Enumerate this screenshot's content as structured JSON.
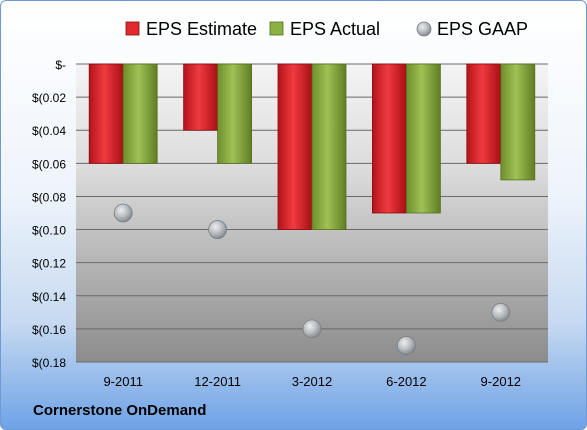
{
  "chart_data": {
    "type": "bar",
    "categories": [
      "9-2011",
      "12-2011",
      "3-2012",
      "6-2012",
      "9-2012"
    ],
    "series": [
      {
        "name": "EPS Estimate",
        "kind": "bar",
        "color": "#e0282d",
        "values": [
          -0.06,
          -0.04,
          -0.1,
          -0.09,
          -0.06
        ]
      },
      {
        "name": "EPS Actual",
        "kind": "bar",
        "color": "#8db044",
        "values": [
          -0.06,
          -0.06,
          -0.1,
          -0.09,
          -0.07
        ]
      },
      {
        "name": "EPS GAAP",
        "kind": "marker",
        "color": "#b8bcc2",
        "values": [
          -0.09,
          -0.1,
          -0.16,
          -0.17,
          -0.15
        ]
      }
    ],
    "ylim": [
      -0.18,
      0
    ],
    "y_ticks": [
      0,
      -0.02,
      -0.04,
      -0.06,
      -0.08,
      -0.1,
      -0.12,
      -0.14,
      -0.16,
      -0.18
    ],
    "y_tick_labels": [
      "$-",
      "$(0.02",
      "$(0.04",
      "$(0.06",
      "$(0.08",
      "$(0.10",
      "$(0.12",
      "$(0.14",
      "$(0.16",
      "$(0.18"
    ],
    "legend_position": "top",
    "grid": true
  },
  "footer": {
    "company": "Cornerstone OnDemand"
  }
}
